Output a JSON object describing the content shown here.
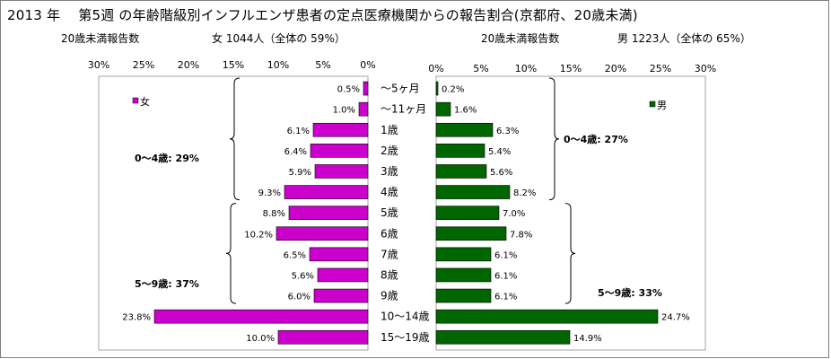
{
  "title": "2013 年 　第5週 の年齢階級別インフルエンザ患者の定点医療機関からの報告割合(京都府、20歳未満)",
  "summary": {
    "female_label": "20歳未満報告数",
    "female_text": "女 1044人（全体の 59%）",
    "male_label": "20歳未満報告数",
    "male_text": "男 1223人（全体の 65%）"
  },
  "colors": {
    "female": "#cc00cc",
    "male": "#006600",
    "plot_border": "#a6a6a6",
    "outer_border": "#7f7f7f"
  },
  "chart_data": [
    {
      "type": "bar",
      "orientation": "horizontal-reversed",
      "categories": [
        "～5ヶ月",
        "～11ヶ月",
        "1歳",
        "2歳",
        "3歳",
        "4歳",
        "5歳",
        "6歳",
        "7歳",
        "8歳",
        "9歳",
        "10～14歳",
        "15～19歳"
      ],
      "series": [
        {
          "name": "女",
          "values": [
            0.5,
            1.0,
            6.1,
            6.4,
            5.9,
            9.3,
            8.8,
            10.2,
            6.5,
            5.6,
            6.0,
            23.8,
            10.0
          ],
          "labels": [
            "0.5%",
            "1.0%",
            "6.1%",
            "6.4%",
            "5.9%",
            "9.3%",
            "8.8%",
            "10.2%",
            "6.5%",
            "5.6%",
            "6.0%",
            "23.8%",
            "10.0%"
          ]
        }
      ],
      "xlim": [
        0,
        30
      ],
      "xticks": [
        "30%",
        "25%",
        "20%",
        "15%",
        "10%",
        "5%",
        "0%"
      ],
      "legend": "top-left",
      "grid": false,
      "annotations": [
        "0～4歳:  29%",
        "5～9歳:  37%"
      ]
    },
    {
      "type": "bar",
      "orientation": "horizontal",
      "categories": [
        "～5ヶ月",
        "～11ヶ月",
        "1歳",
        "2歳",
        "3歳",
        "4歳",
        "5歳",
        "6歳",
        "7歳",
        "8歳",
        "9歳",
        "10～14歳",
        "15～19歳"
      ],
      "series": [
        {
          "name": "男",
          "values": [
            0.2,
            1.6,
            6.3,
            5.4,
            5.6,
            8.2,
            7.0,
            7.8,
            6.1,
            6.1,
            6.1,
            24.7,
            14.9
          ],
          "labels": [
            "0.2%",
            "1.6%",
            "6.3%",
            "5.4%",
            "5.6%",
            "8.2%",
            "7.0%",
            "7.8%",
            "6.1%",
            "6.1%",
            "6.1%",
            "24.7%",
            "14.9%"
          ]
        }
      ],
      "xlim": [
        0,
        30
      ],
      "xticks": [
        "0%",
        "5%",
        "10%",
        "15%",
        "20%",
        "25%",
        "30%"
      ],
      "legend": "top-right",
      "grid": false,
      "annotations": [
        "0～4歳:  27%",
        "5～9歳:  33%"
      ]
    }
  ]
}
